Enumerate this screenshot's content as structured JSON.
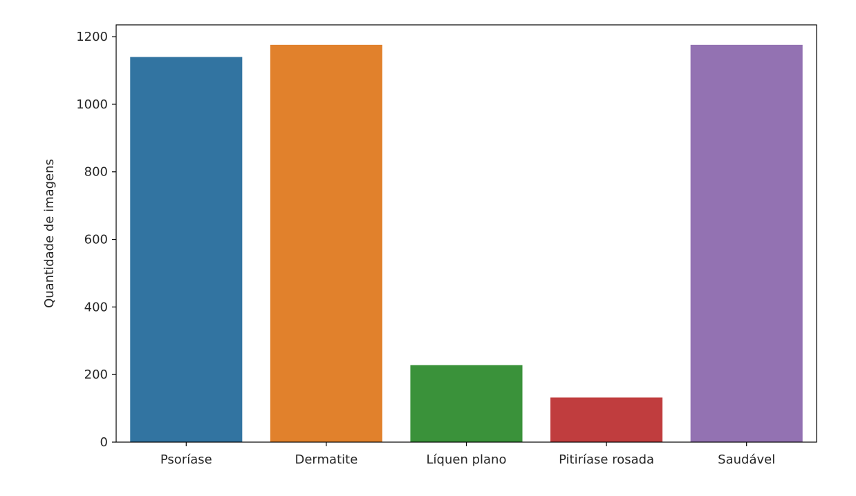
{
  "chart_data": {
    "type": "bar",
    "title": "",
    "xlabel": "",
    "ylabel": "Quantidade de imagens",
    "categories": [
      "Psoríase",
      "Dermatite",
      "Líquen plano",
      "Pitiríase rosada",
      "Saudável"
    ],
    "values": [
      1140,
      1176,
      228,
      132,
      1176
    ],
    "colors": [
      "#3274a1",
      "#e1812c",
      "#3a923a",
      "#c03d3e",
      "#9372b2"
    ],
    "ylim": [
      0,
      1235
    ],
    "yticks": [
      0,
      200,
      400,
      600,
      800,
      1000,
      1200
    ],
    "grid": false,
    "legend": "none"
  }
}
